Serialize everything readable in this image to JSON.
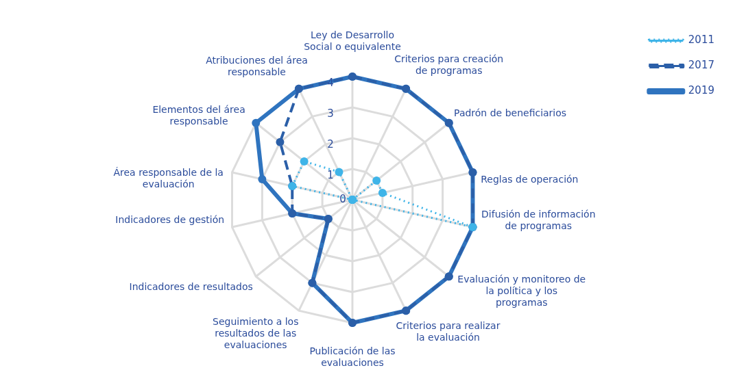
{
  "chart_data": {
    "type": "radar",
    "categories": [
      "Ley de Desarrollo Social o equivalente",
      "Criterios para creación de programas",
      "Padrón de beneficiarios",
      "Reglas de operación",
      "Difusión de información de programas",
      "Evaluación y monitoreo de la política y los programas",
      "Criterios para realizar la evaluación",
      "Publicación de las evaluaciones",
      "Seguimiento a los resultados de las evaluaciones",
      "Indicadores de resultados",
      "Indicadores de gestión",
      "Área responsable de la evaluación",
      "Elementos del área responsable",
      "Atribuciones del área responsable"
    ],
    "series": [
      {
        "name": "2011",
        "color": "#3fb4e8",
        "line_style": "dotted",
        "values": [
          0,
          0,
          1,
          1,
          4,
          0,
          0,
          0,
          0,
          0,
          0,
          2,
          2,
          1
        ]
      },
      {
        "name": "2017",
        "color": "#2b5fa8",
        "line_style": "dashed",
        "values": [
          4,
          4,
          4,
          4,
          4,
          4,
          4,
          4,
          3,
          1,
          2,
          2,
          3,
          4
        ]
      },
      {
        "name": "2019",
        "color": "#2f74bf",
        "line_style": "solid",
        "values": [
          4,
          4,
          4,
          4,
          4,
          4,
          4,
          4,
          3,
          1,
          2,
          3,
          4,
          4
        ]
      }
    ],
    "ylim": [
      0,
      4
    ],
    "yticks": [
      0,
      1,
      2,
      3,
      4
    ],
    "grid": true,
    "legend": "top right",
    "marker": "circle"
  }
}
